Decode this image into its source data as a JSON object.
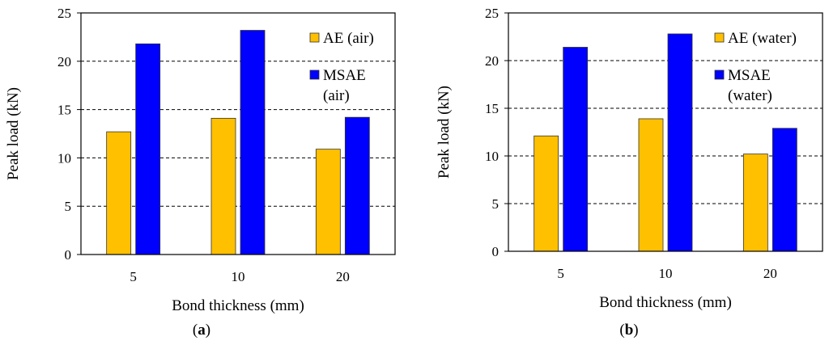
{
  "chart_data": [
    {
      "type": "bar",
      "panel_label": "a",
      "categories": [
        "5",
        "10",
        "20"
      ],
      "series": [
        {
          "name": "AE",
          "name_suffix": "(air)",
          "color": "#FFC000",
          "values": [
            12.7,
            14.1,
            10.9
          ]
        },
        {
          "name": "MSAE",
          "name_suffix": "(air)",
          "color": "#0000FF",
          "values": [
            21.8,
            23.2,
            14.2
          ]
        }
      ],
      "xlabel": "Bond thickness (mm)",
      "ylabel": "Peak load (kN)",
      "ylim": [
        0,
        25
      ],
      "yticks": [
        0,
        5,
        10,
        15,
        20,
        25
      ],
      "grid": "horizontal-dashed",
      "legend_position": "top-right"
    },
    {
      "type": "bar",
      "panel_label": "b",
      "categories": [
        "5",
        "10",
        "20"
      ],
      "series": [
        {
          "name": "AE",
          "name_suffix": "(water)",
          "color": "#FFC000",
          "values": [
            12.1,
            13.9,
            10.2
          ]
        },
        {
          "name": "MSAE",
          "name_suffix": "(water)",
          "color": "#0000FF",
          "values": [
            21.4,
            22.8,
            12.9
          ]
        }
      ],
      "xlabel": "Bond thickness (mm)",
      "ylabel": "Peak load (kN)",
      "ylim": [
        0,
        25
      ],
      "yticks": [
        0,
        5,
        10,
        15,
        20,
        25
      ],
      "grid": "horizontal-dashed",
      "legend_position": "top-right"
    }
  ]
}
